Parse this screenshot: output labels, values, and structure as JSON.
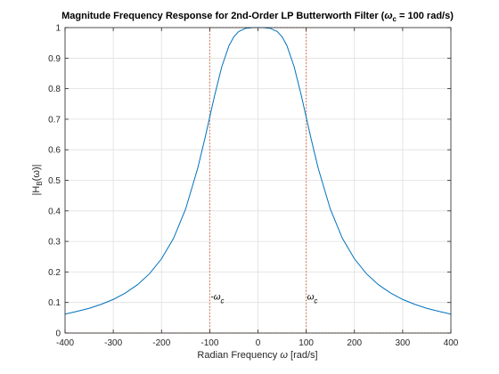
{
  "chart_data": {
    "type": "line",
    "title_prefix": "Magnitude Frequency Response for 2nd-Order LP Butterworth Filter (",
    "title_symbol": "ω",
    "title_subscript": "c",
    "title_suffix": " = 100 rad/s)",
    "xlabel_text": "Radian Frequency ",
    "xlabel_symbol": "ω",
    "xlabel_unit": " [rad/s]",
    "ylabel_main": "|H",
    "ylabel_sub": "B",
    "ylabel_tail": "(ω)|",
    "xlim": [
      -400,
      400
    ],
    "ylim": [
      0,
      1
    ],
    "xticks": [
      -400,
      -300,
      -200,
      -100,
      0,
      100,
      200,
      300,
      400
    ],
    "yticks": [
      0,
      0.1,
      0.2,
      0.3,
      0.4,
      0.5,
      0.6,
      0.7,
      0.8,
      0.9,
      1
    ],
    "grid": true,
    "cutoff": 100,
    "line_color": "#0072BD",
    "cutoff_line_color": "#D95319",
    "series": [
      {
        "x": [
          -400,
          -375,
          -350,
          -325,
          -300,
          -275,
          -250,
          -225,
          -200,
          -175,
          -150,
          -125,
          -110,
          -100,
          -90,
          -75,
          -60,
          -50,
          -40,
          -25,
          -10,
          0,
          10,
          25,
          40,
          50,
          60,
          75,
          90,
          100,
          110,
          125,
          150,
          175,
          200,
          225,
          250,
          275,
          300,
          325,
          350,
          375,
          400
        ],
        "y": [
          0.062,
          0.071,
          0.081,
          0.094,
          0.11,
          0.131,
          0.158,
          0.194,
          0.243,
          0.31,
          0.406,
          0.539,
          0.637,
          0.707,
          0.777,
          0.872,
          0.941,
          0.97,
          0.987,
          0.998,
          1.0,
          1.0,
          1.0,
          0.998,
          0.987,
          0.97,
          0.941,
          0.872,
          0.777,
          0.707,
          0.637,
          0.539,
          0.406,
          0.31,
          0.243,
          0.194,
          0.158,
          0.131,
          0.11,
          0.094,
          0.081,
          0.071,
          0.062
        ]
      }
    ],
    "annotations": [
      {
        "x": -100,
        "y": 0.1,
        "prefix": "-",
        "symbol": "ω",
        "sub": "c"
      },
      {
        "x": 100,
        "y": 0.1,
        "prefix": "",
        "symbol": "ω",
        "sub": "c"
      }
    ]
  }
}
